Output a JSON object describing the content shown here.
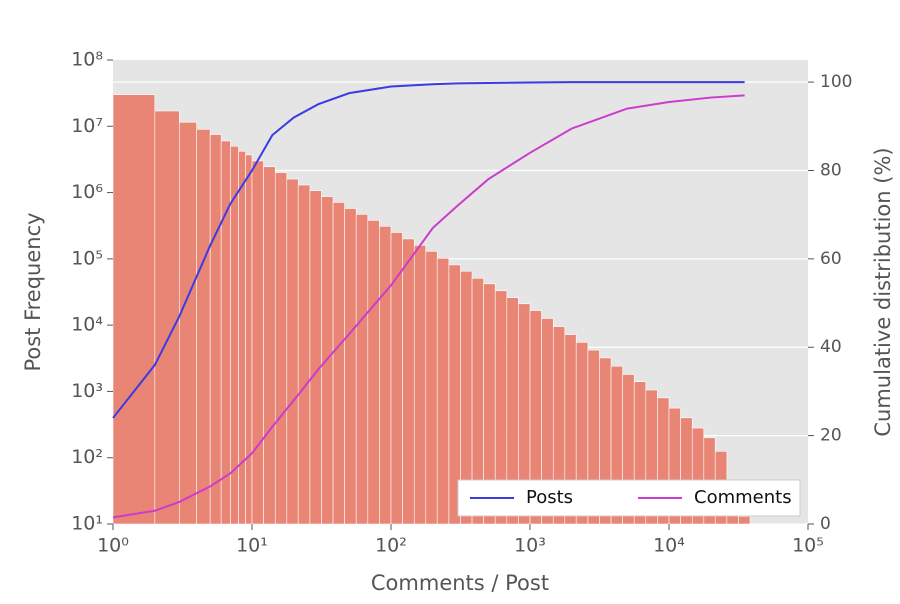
{
  "chart_data": {
    "type": "histogram",
    "xlabel": "Comments / Post",
    "ylabel": "Post Frequency",
    "y2label": "Cumulative distribution (%)",
    "xscale": "log",
    "yscale": "log",
    "xlim": [
      1,
      100000
    ],
    "ylim": [
      10,
      100000000
    ],
    "y2lim": [
      0,
      105
    ],
    "xticks": [
      {
        "value": 1,
        "label": "10⁰"
      },
      {
        "value": 10,
        "label": "10¹"
      },
      {
        "value": 100,
        "label": "10²"
      },
      {
        "value": 1000,
        "label": "10³"
      },
      {
        "value": 10000,
        "label": "10⁴"
      },
      {
        "value": 100000,
        "label": "10⁵"
      }
    ],
    "yticks": [
      {
        "value": 10,
        "label": "10¹"
      },
      {
        "value": 100,
        "label": "10²"
      },
      {
        "value": 1000,
        "label": "10³"
      },
      {
        "value": 10000,
        "label": "10⁴"
      },
      {
        "value": 100000,
        "label": "10⁵"
      },
      {
        "value": 1000000,
        "label": "10⁶"
      },
      {
        "value": 10000000,
        "label": "10⁷"
      },
      {
        "value": 100000000,
        "label": "10⁸"
      }
    ],
    "y2ticks": [
      0,
      20,
      40,
      60,
      80,
      100
    ],
    "grid": true,
    "color": "#e8806f",
    "bins": [
      1,
      2,
      3,
      4,
      5,
      6,
      7,
      8,
      9,
      10,
      12.1,
      14.7,
      17.8,
      21.5,
      26.1,
      31.6,
      38.3,
      46.4,
      56.2,
      68.1,
      82.5,
      100,
      121,
      147,
      178,
      215,
      261,
      316,
      383,
      464,
      562,
      681,
      825,
      1000,
      1210,
      1470,
      1780,
      2150,
      2610,
      3160,
      3830,
      4640,
      5620,
      6810,
      8250,
      10000,
      12100,
      14700,
      17800,
      21500,
      26100,
      31600,
      38300
    ],
    "values": [
      30000000,
      17000000,
      11500000,
      9000000,
      7500000,
      6000000,
      5000000,
      4200000,
      3700000,
      3000000,
      2450000,
      2000000,
      1600000,
      1300000,
      1070000,
      870000,
      710000,
      575000,
      470000,
      380000,
      310000,
      250000,
      200000,
      160000,
      130000,
      102000,
      81000,
      65000,
      51000,
      42000,
      33000,
      26000,
      21000,
      16600,
      12600,
      9500,
      7200,
      5500,
      4200,
      3200,
      2400,
      1800,
      1400,
      1050,
      800,
      560,
      400,
      280,
      200,
      125,
      40,
      13
    ],
    "lines": {
      "type": "line",
      "x": [
        1,
        2,
        3,
        5,
        7,
        10,
        14,
        20,
        30,
        50,
        100,
        200,
        300,
        500,
        1000,
        2000,
        5000,
        10000,
        20000,
        35000
      ],
      "legend": "lower right",
      "series": [
        {
          "name": "Posts",
          "color": "#3b3be6",
          "axis": "y2",
          "values": [
            24,
            36,
            47,
            63,
            72.5,
            80,
            88,
            92,
            95,
            97.5,
            99,
            99.5,
            99.7,
            99.8,
            99.9,
            100,
            100,
            100,
            100,
            100
          ]
        },
        {
          "name": "Comments",
          "color": "#cc3ccc",
          "axis": "y2",
          "values": [
            1.5,
            3,
            5,
            8.5,
            11.5,
            16,
            22,
            28,
            35,
            43,
            54,
            67,
            72,
            78,
            84,
            89.5,
            94,
            95.5,
            96.5,
            97
          ]
        }
      ]
    }
  }
}
